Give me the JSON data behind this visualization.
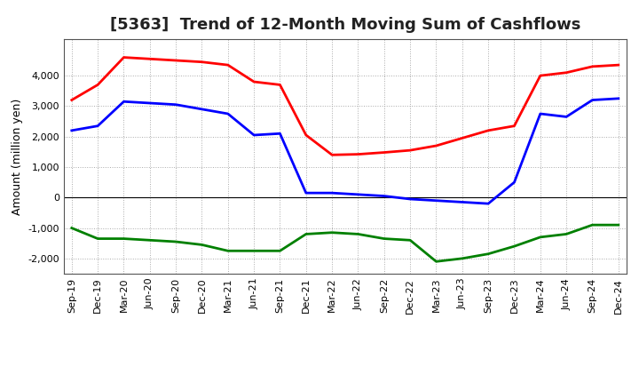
{
  "title": "[5363]  Trend of 12-Month Moving Sum of Cashflows",
  "ylabel": "Amount (million yen)",
  "ylim": [
    -2500,
    5200
  ],
  "yticks": [
    -2000,
    -1000,
    0,
    1000,
    2000,
    3000,
    4000
  ],
  "x_labels": [
    "Sep-19",
    "Dec-19",
    "Mar-20",
    "Jun-20",
    "Sep-20",
    "Dec-20",
    "Mar-21",
    "Jun-21",
    "Sep-21",
    "Dec-21",
    "Mar-22",
    "Jun-22",
    "Sep-22",
    "Dec-22",
    "Mar-23",
    "Jun-23",
    "Sep-23",
    "Dec-23",
    "Mar-24",
    "Jun-24",
    "Sep-24",
    "Dec-24"
  ],
  "operating": [
    3200,
    3700,
    4600,
    4550,
    4500,
    4450,
    4350,
    3800,
    3700,
    2050,
    1400,
    1420,
    1480,
    1550,
    1700,
    1950,
    2200,
    2350,
    4000,
    4100,
    4300,
    4350
  ],
  "investing": [
    -1000,
    -1350,
    -1350,
    -1400,
    -1450,
    -1550,
    -1750,
    -1750,
    -1750,
    -1200,
    -1150,
    -1200,
    -1350,
    -1400,
    -2100,
    -2000,
    -1850,
    -1600,
    -1300,
    -1200,
    -900,
    -900
  ],
  "free": [
    2200,
    2350,
    3150,
    3100,
    3050,
    2900,
    2750,
    2050,
    2100,
    150,
    150,
    100,
    50,
    -50,
    -100,
    -150,
    -200,
    500,
    2750,
    2650,
    3200,
    3250
  ],
  "operating_color": "#FF0000",
  "investing_color": "#008000",
  "free_color": "#0000FF",
  "line_width": 2.0,
  "background_color": "#FFFFFF",
  "plot_bg_color": "#FFFFFF",
  "grid_color": "#AAAAAA",
  "title_fontsize": 13,
  "title_color": "#222222",
  "axis_fontsize": 9,
  "tick_fontsize": 8,
  "legend_fontsize": 9
}
